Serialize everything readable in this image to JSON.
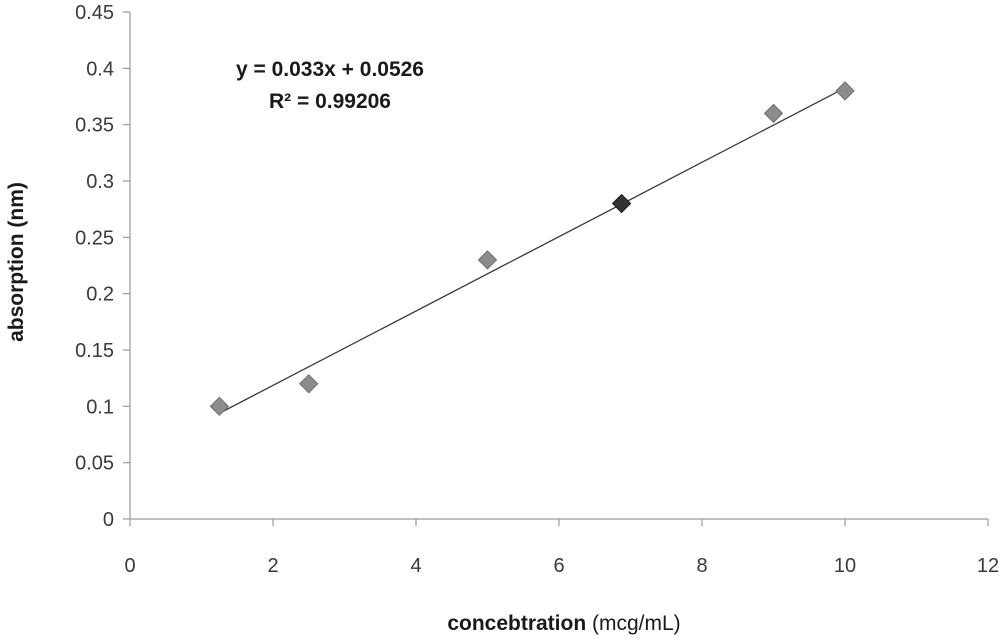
{
  "chart_data": {
    "type": "scatter",
    "title": "",
    "xlabel_bold": "concebtration",
    "xlabel_rest": " (mcg/mL)",
    "ylabel": "absorption (nm)",
    "xlim": [
      0,
      12
    ],
    "ylim": [
      0,
      0.45
    ],
    "x_ticks": [
      0,
      2,
      4,
      6,
      8,
      10,
      12
    ],
    "y_ticks": [
      0,
      0.05,
      0.1,
      0.15,
      0.2,
      0.25,
      0.3,
      0.35,
      0.4,
      0.45
    ],
    "grid": false,
    "legend": "none",
    "series": [
      {
        "marker": "diamond",
        "color": "#8c8c8c",
        "highlight_color": "#333333",
        "x": [
          1.25,
          2.5,
          5,
          6.875,
          9,
          10
        ],
        "y": [
          0.1,
          0.12,
          0.23,
          0.28,
          0.36,
          0.38
        ],
        "highlight_index": 3
      }
    ],
    "trendline": {
      "type": "linear",
      "slope": 0.033,
      "intercept": 0.0526,
      "x_range": [
        1.25,
        10
      ],
      "color": "#3a3a3a"
    },
    "annotations": {
      "equation": "y = 0.033x + 0.0526",
      "r_squared": "R² = 0.99206"
    }
  }
}
